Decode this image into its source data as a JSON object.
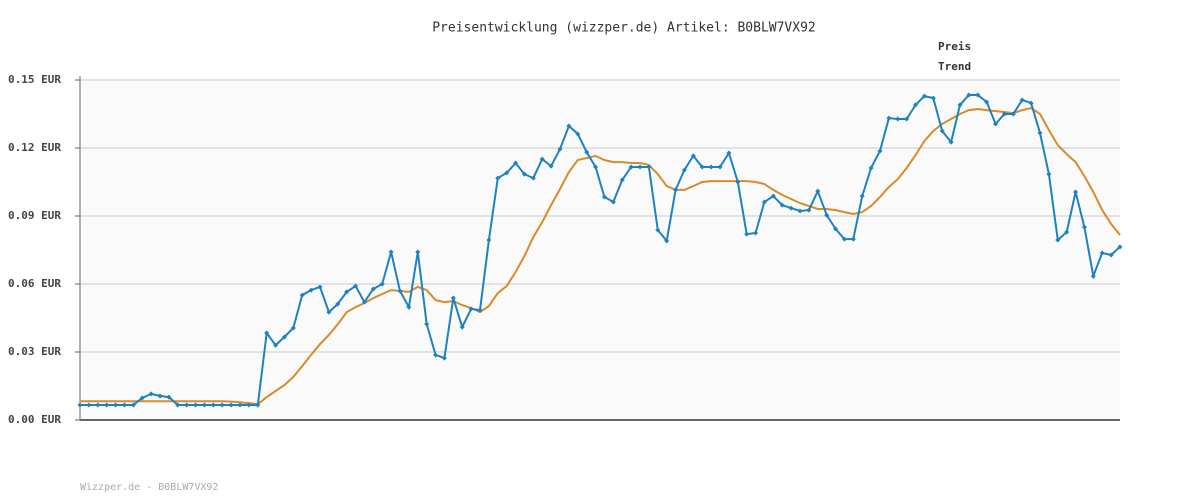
{
  "chart_data": {
    "type": "line",
    "title": "Preisentwicklung (wizzper.de) Artikel: B0BLW7VX92",
    "footer": "Wizzper.de - B0BLW7VX92",
    "ylim": [
      0,
      0.15
    ],
    "yticks": [
      {
        "value": 0,
        "label": "0.00 EUR"
      },
      {
        "value": 0.03,
        "label": "0.03 EUR"
      },
      {
        "value": 0.06,
        "label": "0.06 EUR"
      },
      {
        "value": 0.09,
        "label": "0.09 EUR"
      },
      {
        "value": 0.12,
        "label": "0.12 EUR"
      },
      {
        "value": 0.15,
        "label": "0.15 EUR"
      }
    ],
    "grid": true,
    "legend": "top-right",
    "series": [
      {
        "name": "Preis",
        "color": "#1f82c0",
        "markers": true,
        "values": [
          0.0066,
          0.0066,
          0.0066,
          0.0066,
          0.0066,
          0.0066,
          0.0066,
          0.0097,
          0.0115,
          0.0106,
          0.0101,
          0.0066,
          0.0066,
          0.0066,
          0.0066,
          0.0066,
          0.0066,
          0.0066,
          0.0066,
          0.0066,
          0.0066,
          0.0384,
          0.033,
          0.0366,
          0.0406,
          0.0551,
          0.0573,
          0.0587,
          0.0476,
          0.0512,
          0.0565,
          0.0591,
          0.052,
          0.0578,
          0.06,
          0.0741,
          0.0569,
          0.0498,
          0.0741,
          0.0423,
          0.0287,
          0.0273,
          0.0538,
          0.041,
          0.049,
          0.0485,
          0.0794,
          0.1067,
          0.109,
          0.1134,
          0.1085,
          0.1067,
          0.1151,
          0.112,
          0.1195,
          0.1297,
          0.1262,
          0.1182,
          0.1116,
          0.0984,
          0.0962,
          0.1059,
          0.1116,
          0.1116,
          0.1116,
          0.0838,
          0.079,
          0.1015,
          0.1103,
          0.1165,
          0.1116,
          0.1116,
          0.1116,
          0.1178,
          0.105,
          0.082,
          0.0825,
          0.0962,
          0.0988,
          0.0948,
          0.0935,
          0.0922,
          0.0926,
          0.101,
          0.0904,
          0.0843,
          0.0798,
          0.0798,
          0.0988,
          0.1112,
          0.1187,
          0.1332,
          0.1328,
          0.1328,
          0.139,
          0.1429,
          0.142,
          0.1275,
          0.1226,
          0.139,
          0.1434,
          0.1434,
          0.1403,
          0.1306,
          0.135,
          0.135,
          0.1412,
          0.1398,
          0.1266,
          0.1085,
          0.0794,
          0.0829,
          0.1006,
          0.0851,
          0.0635,
          0.0737,
          0.0728,
          0.0764
        ]
      },
      {
        "name": "Trend",
        "color": "#d98a2b",
        "markers": false,
        "values": [
          0.0083,
          0.0083,
          0.0083,
          0.0083,
          0.0083,
          0.0083,
          0.0083,
          0.0083,
          0.0083,
          0.0083,
          0.0083,
          0.0083,
          0.0083,
          0.0083,
          0.0083,
          0.0083,
          0.0083,
          0.0081,
          0.0078,
          0.0074,
          0.007,
          0.0101,
          0.0128,
          0.0154,
          0.019,
          0.0238,
          0.0287,
          0.0335,
          0.0375,
          0.0423,
          0.0476,
          0.0498,
          0.0516,
          0.0538,
          0.0556,
          0.0573,
          0.0569,
          0.0565,
          0.0587,
          0.0573,
          0.0529,
          0.052,
          0.0525,
          0.0507,
          0.0494,
          0.0476,
          0.0503,
          0.056,
          0.0591,
          0.0653,
          0.0723,
          0.0807,
          0.0873,
          0.0948,
          0.1019,
          0.1094,
          0.1147,
          0.1156,
          0.1165,
          0.1147,
          0.1138,
          0.1138,
          0.1134,
          0.1134,
          0.1125,
          0.1085,
          0.1032,
          0.1015,
          0.1015,
          0.1032,
          0.105,
          0.1054,
          0.1054,
          0.1054,
          0.1054,
          0.1054,
          0.105,
          0.1041,
          0.1015,
          0.0993,
          0.0975,
          0.0957,
          0.0944,
          0.0931,
          0.0931,
          0.0926,
          0.0917,
          0.0909,
          0.0917,
          0.0944,
          0.0984,
          0.1028,
          0.1063,
          0.1112,
          0.1169,
          0.1231,
          0.1275,
          0.1306,
          0.1328,
          0.135,
          0.1367,
          0.1372,
          0.1367,
          0.1363,
          0.1359,
          0.1354,
          0.1367,
          0.1376,
          0.135,
          0.1279,
          0.1213,
          0.1173,
          0.1138,
          0.1076,
          0.1006,
          0.0926,
          0.0865,
          0.0816
        ]
      }
    ]
  }
}
